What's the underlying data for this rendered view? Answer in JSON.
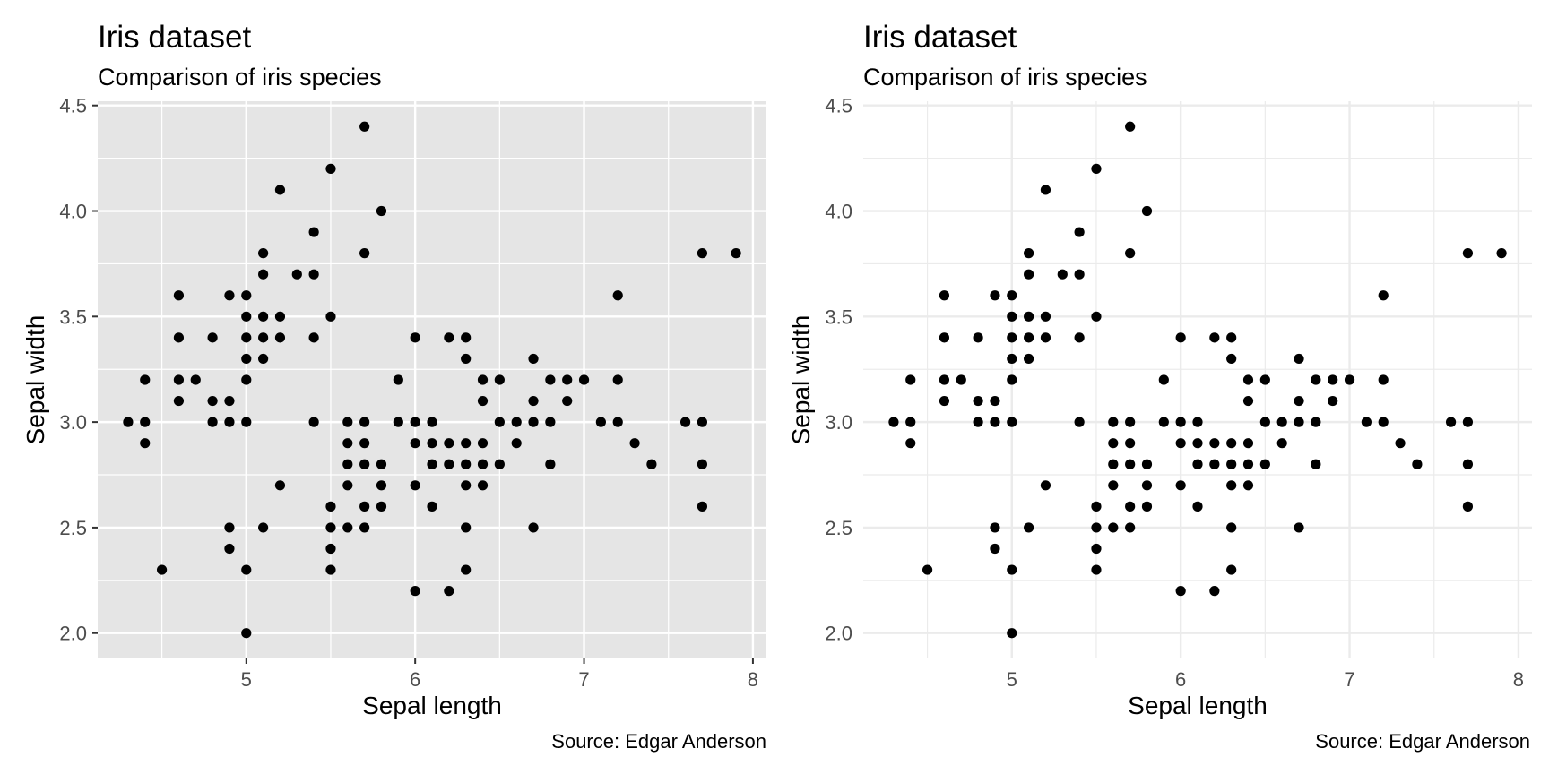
{
  "chart_data": [
    {
      "type": "scatter",
      "theme": "gray",
      "title": "Iris dataset",
      "subtitle": "Comparison of iris species",
      "xlabel": "Sepal length",
      "ylabel": "Sepal width",
      "caption": "Source: Edgar Anderson",
      "xlim": [
        4.12,
        8.08
      ],
      "ylim": [
        1.88,
        4.52
      ],
      "x_ticks": [
        5,
        6,
        7,
        8
      ],
      "x_tick_labels": [
        "5",
        "6",
        "7",
        "8"
      ],
      "y_ticks": [
        2.0,
        2.5,
        3.0,
        3.5,
        4.0,
        4.5
      ],
      "y_tick_labels": [
        "2.0",
        "2.5",
        "3.0",
        "3.5",
        "4.0",
        "4.5"
      ],
      "grid": true,
      "point_color": "#000000",
      "panel_background": "#e5e5e5",
      "grid_color": "#ffffff",
      "points": [
        [
          4.3,
          3.0
        ],
        [
          4.4,
          2.9
        ],
        [
          4.4,
          3.0
        ],
        [
          4.4,
          3.2
        ],
        [
          4.5,
          2.3
        ],
        [
          4.6,
          3.1
        ],
        [
          4.6,
          3.2
        ],
        [
          4.6,
          3.4
        ],
        [
          4.6,
          3.6
        ],
        [
          4.7,
          3.2
        ],
        [
          4.8,
          3.0
        ],
        [
          4.8,
          3.1
        ],
        [
          4.8,
          3.4
        ],
        [
          4.9,
          2.4
        ],
        [
          4.9,
          2.5
        ],
        [
          4.9,
          3.0
        ],
        [
          4.9,
          3.1
        ],
        [
          4.9,
          3.6
        ],
        [
          5.0,
          2.0
        ],
        [
          5.0,
          2.3
        ],
        [
          5.0,
          3.0
        ],
        [
          5.0,
          3.2
        ],
        [
          5.0,
          3.3
        ],
        [
          5.0,
          3.4
        ],
        [
          5.0,
          3.5
        ],
        [
          5.0,
          3.6
        ],
        [
          5.1,
          2.5
        ],
        [
          5.1,
          3.3
        ],
        [
          5.1,
          3.4
        ],
        [
          5.1,
          3.5
        ],
        [
          5.1,
          3.7
        ],
        [
          5.1,
          3.8
        ],
        [
          5.2,
          2.7
        ],
        [
          5.2,
          3.4
        ],
        [
          5.2,
          3.5
        ],
        [
          5.2,
          4.1
        ],
        [
          5.3,
          3.7
        ],
        [
          5.4,
          3.0
        ],
        [
          5.4,
          3.4
        ],
        [
          5.4,
          3.7
        ],
        [
          5.4,
          3.9
        ],
        [
          5.5,
          2.3
        ],
        [
          5.5,
          2.4
        ],
        [
          5.5,
          2.5
        ],
        [
          5.5,
          2.6
        ],
        [
          5.5,
          3.5
        ],
        [
          5.5,
          4.2
        ],
        [
          5.6,
          2.5
        ],
        [
          5.6,
          2.7
        ],
        [
          5.6,
          2.8
        ],
        [
          5.6,
          2.9
        ],
        [
          5.6,
          3.0
        ],
        [
          5.7,
          2.5
        ],
        [
          5.7,
          2.6
        ],
        [
          5.7,
          2.8
        ],
        [
          5.7,
          2.9
        ],
        [
          5.7,
          3.0
        ],
        [
          5.7,
          3.8
        ],
        [
          5.7,
          4.4
        ],
        [
          5.8,
          2.6
        ],
        [
          5.8,
          2.7
        ],
        [
          5.8,
          2.8
        ],
        [
          5.8,
          4.0
        ],
        [
          5.9,
          3.0
        ],
        [
          5.9,
          3.2
        ],
        [
          6.0,
          2.2
        ],
        [
          6.0,
          2.7
        ],
        [
          6.0,
          2.9
        ],
        [
          6.0,
          3.0
        ],
        [
          6.0,
          3.4
        ],
        [
          6.1,
          2.6
        ],
        [
          6.1,
          2.8
        ],
        [
          6.1,
          2.9
        ],
        [
          6.1,
          3.0
        ],
        [
          6.2,
          2.2
        ],
        [
          6.2,
          2.8
        ],
        [
          6.2,
          2.9
        ],
        [
          6.2,
          3.4
        ],
        [
          6.3,
          2.3
        ],
        [
          6.3,
          2.5
        ],
        [
          6.3,
          2.7
        ],
        [
          6.3,
          2.8
        ],
        [
          6.3,
          2.9
        ],
        [
          6.3,
          3.3
        ],
        [
          6.3,
          3.4
        ],
        [
          6.4,
          2.7
        ],
        [
          6.4,
          2.8
        ],
        [
          6.4,
          2.9
        ],
        [
          6.4,
          3.1
        ],
        [
          6.4,
          3.2
        ],
        [
          6.5,
          2.8
        ],
        [
          6.5,
          3.0
        ],
        [
          6.5,
          3.2
        ],
        [
          6.6,
          2.9
        ],
        [
          6.6,
          3.0
        ],
        [
          6.7,
          2.5
        ],
        [
          6.7,
          3.0
        ],
        [
          6.7,
          3.1
        ],
        [
          6.7,
          3.3
        ],
        [
          6.8,
          2.8
        ],
        [
          6.8,
          3.0
        ],
        [
          6.8,
          3.2
        ],
        [
          6.9,
          3.1
        ],
        [
          6.9,
          3.2
        ],
        [
          7.0,
          3.2
        ],
        [
          7.1,
          3.0
        ],
        [
          7.2,
          3.0
        ],
        [
          7.2,
          3.2
        ],
        [
          7.2,
          3.6
        ],
        [
          7.3,
          2.9
        ],
        [
          7.4,
          2.8
        ],
        [
          7.6,
          3.0
        ],
        [
          7.7,
          2.6
        ],
        [
          7.7,
          2.8
        ],
        [
          7.7,
          3.0
        ],
        [
          7.7,
          3.8
        ],
        [
          7.9,
          3.8
        ]
      ]
    },
    {
      "type": "scatter",
      "theme": "minimal",
      "title": "Iris dataset",
      "subtitle": "Comparison of iris species",
      "xlabel": "Sepal length",
      "ylabel": "Sepal width",
      "caption": "Source: Edgar Anderson",
      "xlim": [
        4.12,
        8.08
      ],
      "ylim": [
        1.88,
        4.52
      ],
      "x_ticks": [
        5,
        6,
        7,
        8
      ],
      "x_tick_labels": [
        "5",
        "6",
        "7",
        "8"
      ],
      "y_ticks": [
        2.0,
        2.5,
        3.0,
        3.5,
        4.0,
        4.5
      ],
      "y_tick_labels": [
        "2.0",
        "2.5",
        "3.0",
        "3.5",
        "4.0",
        "4.5"
      ],
      "grid": true,
      "point_color": "#000000",
      "panel_background": "#ffffff",
      "grid_color": "#ebebeb",
      "points": [
        [
          4.3,
          3.0
        ],
        [
          4.4,
          2.9
        ],
        [
          4.4,
          3.0
        ],
        [
          4.4,
          3.2
        ],
        [
          4.5,
          2.3
        ],
        [
          4.6,
          3.1
        ],
        [
          4.6,
          3.2
        ],
        [
          4.6,
          3.4
        ],
        [
          4.6,
          3.6
        ],
        [
          4.7,
          3.2
        ],
        [
          4.8,
          3.0
        ],
        [
          4.8,
          3.1
        ],
        [
          4.8,
          3.4
        ],
        [
          4.9,
          2.4
        ],
        [
          4.9,
          2.5
        ],
        [
          4.9,
          3.0
        ],
        [
          4.9,
          3.1
        ],
        [
          4.9,
          3.6
        ],
        [
          5.0,
          2.0
        ],
        [
          5.0,
          2.3
        ],
        [
          5.0,
          3.0
        ],
        [
          5.0,
          3.2
        ],
        [
          5.0,
          3.3
        ],
        [
          5.0,
          3.4
        ],
        [
          5.0,
          3.5
        ],
        [
          5.0,
          3.6
        ],
        [
          5.1,
          2.5
        ],
        [
          5.1,
          3.3
        ],
        [
          5.1,
          3.4
        ],
        [
          5.1,
          3.5
        ],
        [
          5.1,
          3.7
        ],
        [
          5.1,
          3.8
        ],
        [
          5.2,
          2.7
        ],
        [
          5.2,
          3.4
        ],
        [
          5.2,
          3.5
        ],
        [
          5.2,
          4.1
        ],
        [
          5.3,
          3.7
        ],
        [
          5.4,
          3.0
        ],
        [
          5.4,
          3.4
        ],
        [
          5.4,
          3.7
        ],
        [
          5.4,
          3.9
        ],
        [
          5.5,
          2.3
        ],
        [
          5.5,
          2.4
        ],
        [
          5.5,
          2.5
        ],
        [
          5.5,
          2.6
        ],
        [
          5.5,
          3.5
        ],
        [
          5.5,
          4.2
        ],
        [
          5.6,
          2.5
        ],
        [
          5.6,
          2.7
        ],
        [
          5.6,
          2.8
        ],
        [
          5.6,
          2.9
        ],
        [
          5.6,
          3.0
        ],
        [
          5.7,
          2.5
        ],
        [
          5.7,
          2.6
        ],
        [
          5.7,
          2.8
        ],
        [
          5.7,
          2.9
        ],
        [
          5.7,
          3.0
        ],
        [
          5.7,
          3.8
        ],
        [
          5.7,
          4.4
        ],
        [
          5.8,
          2.6
        ],
        [
          5.8,
          2.7
        ],
        [
          5.8,
          2.8
        ],
        [
          5.8,
          4.0
        ],
        [
          5.9,
          3.0
        ],
        [
          5.9,
          3.2
        ],
        [
          6.0,
          2.2
        ],
        [
          6.0,
          2.7
        ],
        [
          6.0,
          2.9
        ],
        [
          6.0,
          3.0
        ],
        [
          6.0,
          3.4
        ],
        [
          6.1,
          2.6
        ],
        [
          6.1,
          2.8
        ],
        [
          6.1,
          2.9
        ],
        [
          6.1,
          3.0
        ],
        [
          6.2,
          2.2
        ],
        [
          6.2,
          2.8
        ],
        [
          6.2,
          2.9
        ],
        [
          6.2,
          3.4
        ],
        [
          6.3,
          2.3
        ],
        [
          6.3,
          2.5
        ],
        [
          6.3,
          2.7
        ],
        [
          6.3,
          2.8
        ],
        [
          6.3,
          2.9
        ],
        [
          6.3,
          3.3
        ],
        [
          6.3,
          3.4
        ],
        [
          6.4,
          2.7
        ],
        [
          6.4,
          2.8
        ],
        [
          6.4,
          2.9
        ],
        [
          6.4,
          3.1
        ],
        [
          6.4,
          3.2
        ],
        [
          6.5,
          2.8
        ],
        [
          6.5,
          3.0
        ],
        [
          6.5,
          3.2
        ],
        [
          6.6,
          2.9
        ],
        [
          6.6,
          3.0
        ],
        [
          6.7,
          2.5
        ],
        [
          6.7,
          3.0
        ],
        [
          6.7,
          3.1
        ],
        [
          6.7,
          3.3
        ],
        [
          6.8,
          2.8
        ],
        [
          6.8,
          3.0
        ],
        [
          6.8,
          3.2
        ],
        [
          6.9,
          3.1
        ],
        [
          6.9,
          3.2
        ],
        [
          7.0,
          3.2
        ],
        [
          7.1,
          3.0
        ],
        [
          7.2,
          3.0
        ],
        [
          7.2,
          3.2
        ],
        [
          7.2,
          3.6
        ],
        [
          7.3,
          2.9
        ],
        [
          7.4,
          2.8
        ],
        [
          7.6,
          3.0
        ],
        [
          7.7,
          2.6
        ],
        [
          7.7,
          2.8
        ],
        [
          7.7,
          3.0
        ],
        [
          7.7,
          3.8
        ],
        [
          7.9,
          3.8
        ]
      ]
    }
  ]
}
